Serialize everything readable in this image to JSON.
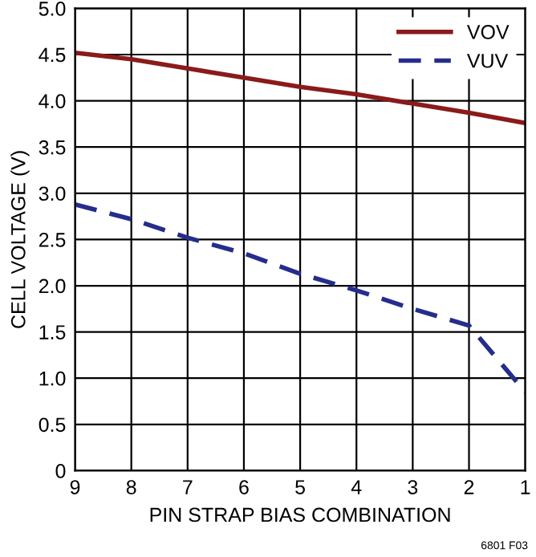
{
  "chart_data": {
    "type": "line",
    "xlabel": "PIN STRAP BIAS COMBINATION",
    "ylabel": "CELL VOLTAGE (V)",
    "x": [
      9,
      8,
      7,
      6,
      5,
      4,
      3,
      2,
      1
    ],
    "series": [
      {
        "name": "VOV",
        "color": "#8b1a1a",
        "line_style": "solid",
        "values": [
          4.52,
          4.45,
          4.35,
          4.25,
          4.15,
          4.07,
          3.97,
          3.87,
          3.76
        ]
      },
      {
        "name": "VUV",
        "color": "#252d8c",
        "line_style": "dashed",
        "values": [
          2.88,
          2.72,
          2.52,
          2.35,
          2.13,
          1.95,
          1.75,
          1.57,
          0.85
        ]
      }
    ],
    "xlim": [
      9,
      1
    ],
    "xticks": [
      9,
      8,
      7,
      6,
      5,
      4,
      3,
      2,
      1
    ],
    "ylim": [
      0,
      5
    ],
    "yticks": [
      0,
      0.5,
      {
        "value": 1,
        "label": "1.0"
      },
      1.5,
      {
        "value": 2,
        "label": "2.0"
      },
      2.5,
      {
        "value": 3,
        "label": "3.0"
      },
      3.5,
      {
        "value": 4,
        "label": "4.0"
      },
      4.5,
      {
        "value": 5,
        "label": "5.0"
      }
    ],
    "grid": true,
    "legend": "top right",
    "marker": "none",
    "annotations": [
      "6801 F03"
    ]
  }
}
